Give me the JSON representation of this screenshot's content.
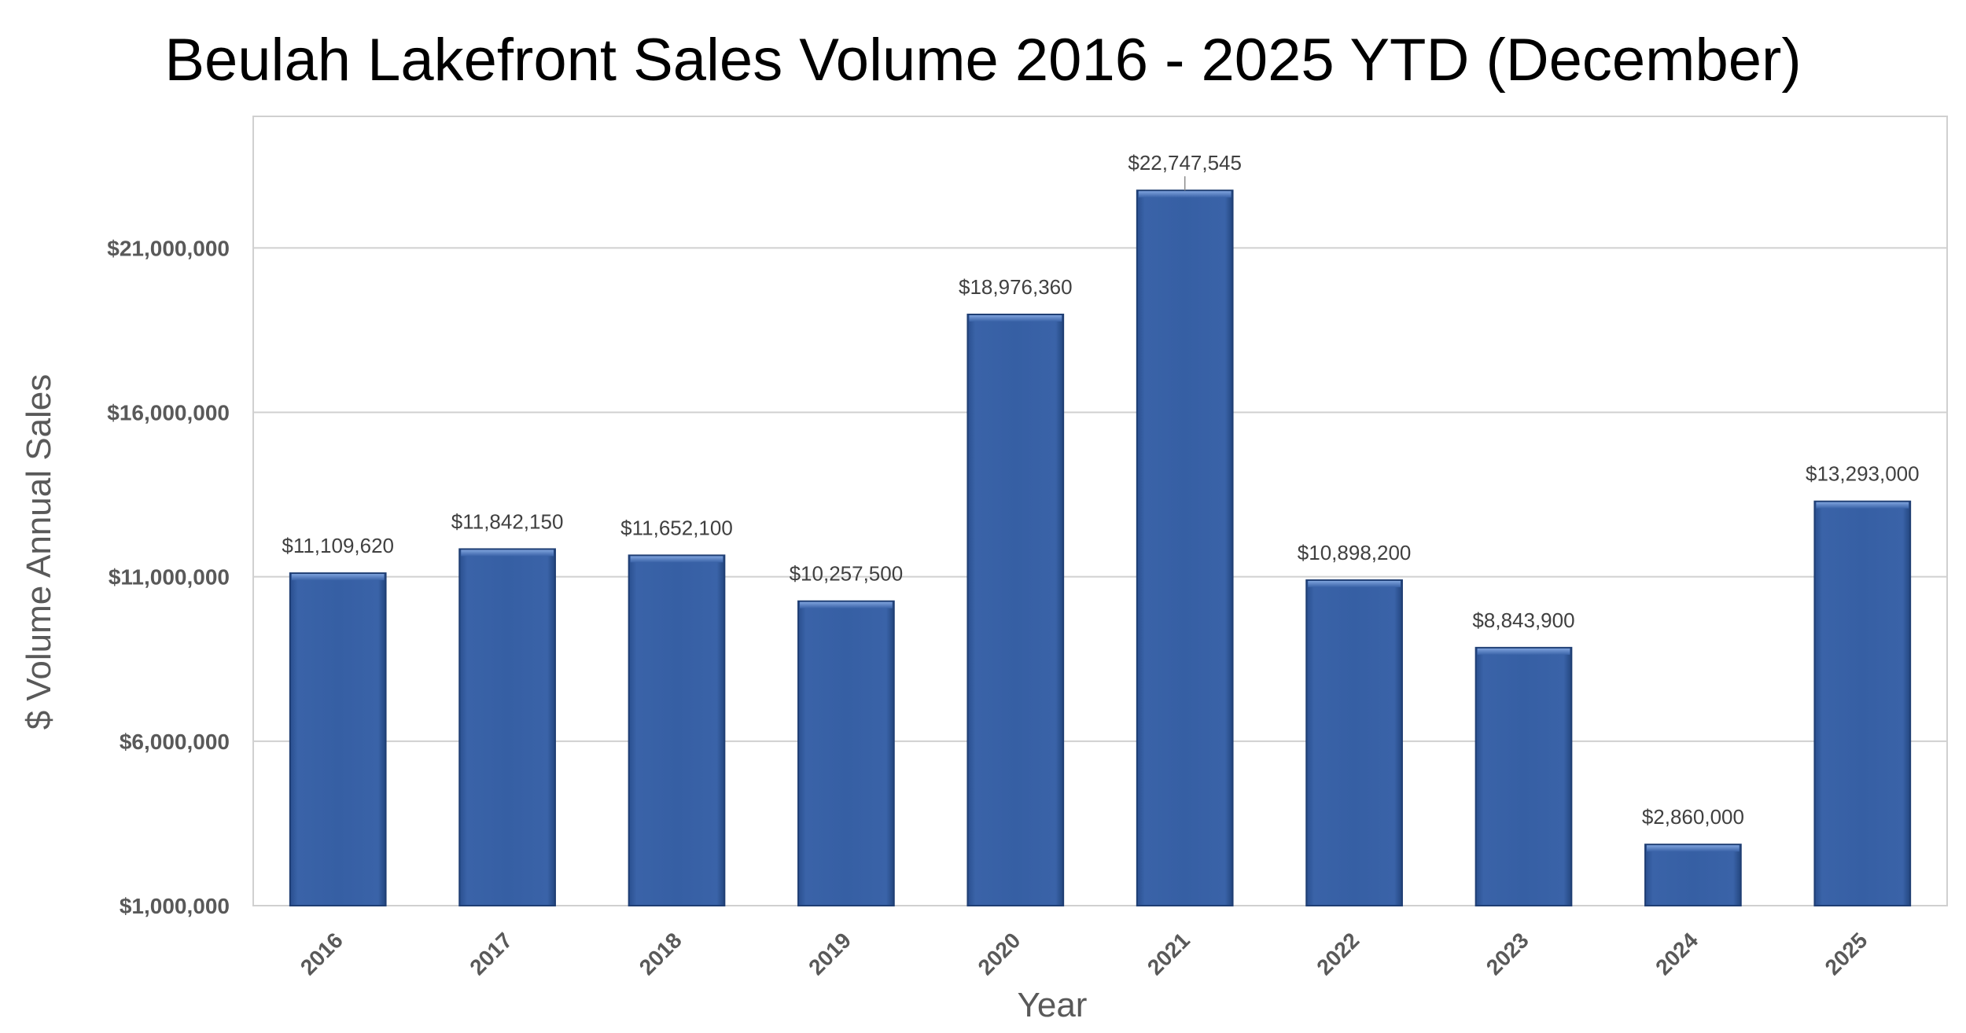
{
  "chart_data": {
    "type": "bar",
    "title": "Beulah Lakefront Sales Volume 2016 - 2025 YTD (December)",
    "xlabel": "Year",
    "ylabel": "$ Volume Annual Sales",
    "categories": [
      "2016",
      "2017",
      "2018",
      "2019",
      "2020",
      "2021",
      "2022",
      "2023",
      "2024",
      "2025"
    ],
    "values": [
      11109620,
      11842150,
      11652100,
      10257500,
      18976360,
      22747545,
      10898200,
      8843900,
      2860000,
      13293000
    ],
    "data_labels": [
      "$11,109,620",
      "$11,842,150",
      "$11,652,100",
      "$10,257,500",
      "$18,976,360",
      "$22,747,545",
      "$10,898,200",
      "$8,843,900",
      "$2,860,000",
      "$13,293,000"
    ],
    "ylim": [
      1000000,
      25000000
    ],
    "yticks": [
      1000000,
      6000000,
      11000000,
      16000000,
      21000000
    ],
    "ytick_labels": [
      "$1,000,000",
      "$6,000,000",
      "$11,000,000",
      "$16,000,000",
      "$21,000,000"
    ],
    "grid": true,
    "legend": "none",
    "colors": {
      "bar": "#3760a5",
      "bar_dark": "#1f3e73",
      "bar_light": "#5a84c8"
    }
  }
}
